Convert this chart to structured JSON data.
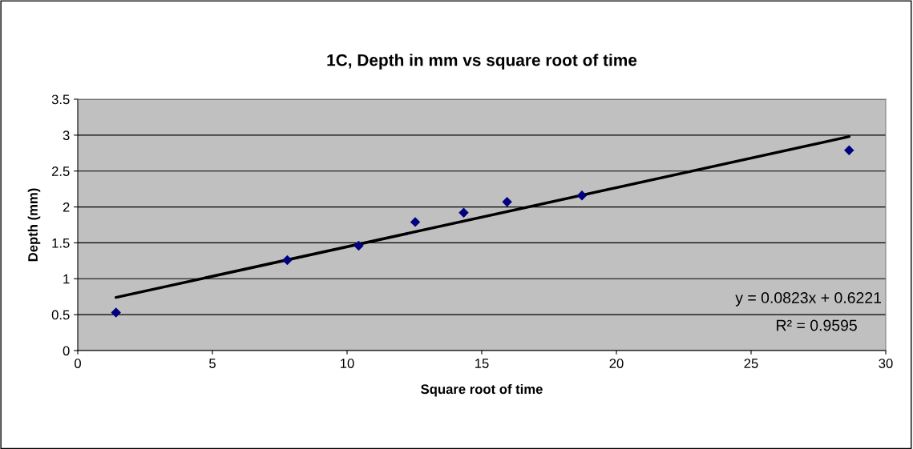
{
  "chart_data": {
    "type": "scatter",
    "title": "1C, Depth in mm vs square root of time",
    "xlabel": "Square root of time",
    "ylabel": "Depth (mm)",
    "series": [
      {
        "color": "#000080",
        "marker": "diamond",
        "x": [
          1.42,
          7.78,
          10.43,
          12.53,
          14.33,
          15.94,
          18.72,
          28.64
        ],
        "values": [
          0.53,
          1.26,
          1.46,
          1.79,
          1.92,
          2.07,
          2.16,
          2.79
        ]
      },
      {
        "type": "line",
        "color": "#000000",
        "marker": "none",
        "line_style": "solid",
        "x": [
          1.42,
          28.64
        ],
        "values": [
          0.74,
          2.98
        ]
      }
    ],
    "xlim": [
      0,
      30
    ],
    "xticks": [
      0,
      5,
      10,
      15,
      20,
      25,
      30
    ],
    "ylim": [
      0,
      3.5
    ],
    "yticks": [
      0,
      0.5,
      1,
      1.5,
      2,
      2.5,
      3,
      3.5
    ],
    "grid": "y",
    "legend": false,
    "annotations": [
      "y = 0.0823x + 0.6221",
      "R² = 0.9595"
    ]
  }
}
